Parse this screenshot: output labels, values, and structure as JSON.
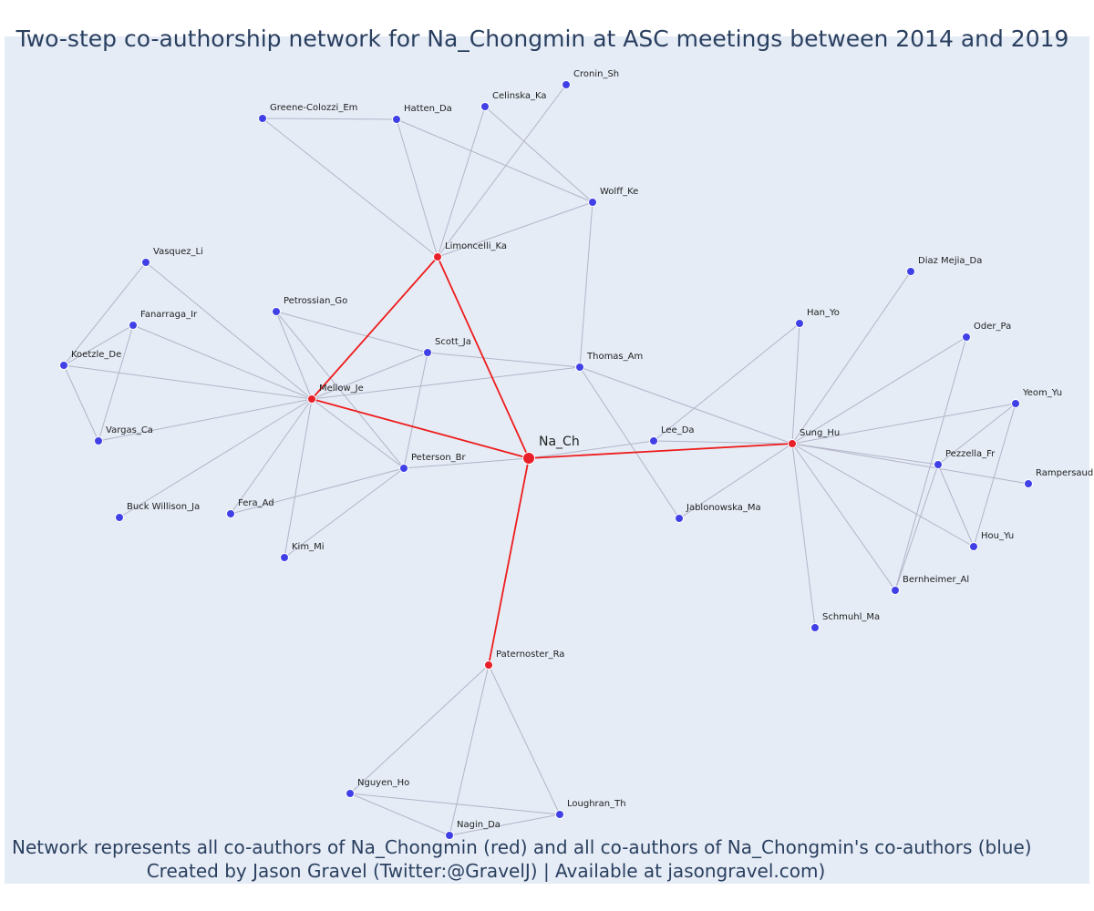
{
  "title": "Two-step co-authorship network for Na_Chongmin at ASC meetings between 2014 and 2019",
  "captions": {
    "line1": "Network represents all co-authors of Na_Chongmin (red) and all co-authors of Na_Chongmin's co-authors (blue)",
    "line2": "Created by Jason Gravel (Twitter:@GravelJ) | Available at jasongravel.com)"
  },
  "colors": {
    "background": "#e5ecf6",
    "coauthor": "#e8202a",
    "second_step": "#4040e6",
    "edge": "#b4b4c8",
    "red_edge": "#ee1c1c"
  },
  "chart_data": {
    "type": "network",
    "focal": "Na_Ch",
    "nodes": [
      {
        "id": "Na_Ch",
        "group": "focal"
      },
      {
        "id": "Mellow_Je",
        "group": "coauthor"
      },
      {
        "id": "Limoncelli_Ka",
        "group": "coauthor"
      },
      {
        "id": "Sung_Hu",
        "group": "coauthor"
      },
      {
        "id": "Paternoster_Ra",
        "group": "coauthor"
      },
      {
        "id": "Cronin_Sh",
        "group": "second"
      },
      {
        "id": "Celinska_Ka",
        "group": "second"
      },
      {
        "id": "Greene-Colozzi_Em",
        "group": "second"
      },
      {
        "id": "Hatten_Da",
        "group": "second"
      },
      {
        "id": "Wolff_Ke",
        "group": "second"
      },
      {
        "id": "Vasquez_Li",
        "group": "second"
      },
      {
        "id": "Fanarraga_Ir",
        "group": "second"
      },
      {
        "id": "Petrossian_Go",
        "group": "second"
      },
      {
        "id": "Koetzle_De",
        "group": "second"
      },
      {
        "id": "Scott_Ja",
        "group": "second"
      },
      {
        "id": "Thomas_Am",
        "group": "second"
      },
      {
        "id": "Vargas_Ca",
        "group": "second"
      },
      {
        "id": "Peterson_Br",
        "group": "second"
      },
      {
        "id": "Buck Willison_Ja",
        "group": "second"
      },
      {
        "id": "Fera_Ad",
        "group": "second"
      },
      {
        "id": "Kim_Mi",
        "group": "second"
      },
      {
        "id": "Lee_Da",
        "group": "second"
      },
      {
        "id": "Jablonowska_Ma",
        "group": "second"
      },
      {
        "id": "Han_Yo",
        "group": "second"
      },
      {
        "id": "Diaz Mejia_Da",
        "group": "second"
      },
      {
        "id": "Oder_Pa",
        "group": "second"
      },
      {
        "id": "Yeom_Yu",
        "group": "second"
      },
      {
        "id": "Pezzella_Fr",
        "group": "second"
      },
      {
        "id": "Rampersaud",
        "group": "second"
      },
      {
        "id": "Hou_Yu",
        "group": "second"
      },
      {
        "id": "Bernheimer_Al",
        "group": "second"
      },
      {
        "id": "Schmuhl_Ma",
        "group": "second"
      },
      {
        "id": "Nguyen_Ho",
        "group": "second"
      },
      {
        "id": "Loughran_Th",
        "group": "second"
      },
      {
        "id": "Nagin_Da",
        "group": "second"
      }
    ],
    "edges": [
      [
        "Na_Ch",
        "Mellow_Je",
        "red"
      ],
      [
        "Na_Ch",
        "Limoncelli_Ka",
        "red"
      ],
      [
        "Na_Ch",
        "Sung_Hu",
        "red"
      ],
      [
        "Na_Ch",
        "Paternoster_Ra",
        "red"
      ],
      [
        "Mellow_Je",
        "Limoncelli_Ka",
        "red"
      ],
      [
        "Na_Ch",
        "Lee_Da",
        "grey"
      ],
      [
        "Na_Ch",
        "Peterson_Br",
        "grey"
      ],
      [
        "Limoncelli_Ka",
        "Greene-Colozzi_Em",
        "grey"
      ],
      [
        "Limoncelli_Ka",
        "Hatten_Da",
        "grey"
      ],
      [
        "Limoncelli_Ka",
        "Celinska_Ka",
        "grey"
      ],
      [
        "Limoncelli_Ka",
        "Cronin_Sh",
        "grey"
      ],
      [
        "Limoncelli_Ka",
        "Wolff_Ke",
        "grey"
      ],
      [
        "Greene-Colozzi_Em",
        "Hatten_Da",
        "grey"
      ],
      [
        "Hatten_Da",
        "Wolff_Ke",
        "grey"
      ],
      [
        "Celinska_Ka",
        "Wolff_Ke",
        "grey"
      ],
      [
        "Wolff_Ke",
        "Thomas_Am",
        "grey"
      ],
      [
        "Mellow_Je",
        "Vasquez_Li",
        "grey"
      ],
      [
        "Mellow_Je",
        "Fanarraga_Ir",
        "grey"
      ],
      [
        "Mellow_Je",
        "Koetzle_De",
        "grey"
      ],
      [
        "Mellow_Je",
        "Vargas_Ca",
        "grey"
      ],
      [
        "Mellow_Je",
        "Petrossian_Go",
        "grey"
      ],
      [
        "Mellow_Je",
        "Scott_Ja",
        "grey"
      ],
      [
        "Mellow_Je",
        "Thomas_Am",
        "grey"
      ],
      [
        "Mellow_Je",
        "Peterson_Br",
        "grey"
      ],
      [
        "Mellow_Je",
        "Buck Willison_Ja",
        "grey"
      ],
      [
        "Mellow_Je",
        "Fera_Ad",
        "grey"
      ],
      [
        "Mellow_Je",
        "Kim_Mi",
        "grey"
      ],
      [
        "Vasquez_Li",
        "Koetzle_De",
        "grey"
      ],
      [
        "Fanarraga_Ir",
        "Koetzle_De",
        "grey"
      ],
      [
        "Fanarraga_Ir",
        "Vargas_Ca",
        "grey"
      ],
      [
        "Koetzle_De",
        "Vargas_Ca",
        "grey"
      ],
      [
        "Petrossian_Go",
        "Scott_Ja",
        "grey"
      ],
      [
        "Petrossian_Go",
        "Peterson_Br",
        "grey"
      ],
      [
        "Scott_Ja",
        "Thomas_Am",
        "grey"
      ],
      [
        "Scott_Ja",
        "Peterson_Br",
        "grey"
      ],
      [
        "Peterson_Br",
        "Fera_Ad",
        "grey"
      ],
      [
        "Peterson_Br",
        "Kim_Mi",
        "grey"
      ],
      [
        "Thomas_Am",
        "Sung_Hu",
        "grey"
      ],
      [
        "Thomas_Am",
        "Jablonowska_Ma",
        "grey"
      ],
      [
        "Lee_Da",
        "Han_Yo",
        "grey"
      ],
      [
        "Lee_Da",
        "Sung_Hu",
        "grey"
      ],
      [
        "Sung_Hu",
        "Han_Yo",
        "grey"
      ],
      [
        "Sung_Hu",
        "Diaz Mejia_Da",
        "grey"
      ],
      [
        "Sung_Hu",
        "Oder_Pa",
        "grey"
      ],
      [
        "Sung_Hu",
        "Yeom_Yu",
        "grey"
      ],
      [
        "Sung_Hu",
        "Pezzella_Fr",
        "grey"
      ],
      [
        "Sung_Hu",
        "Rampersaud",
        "grey"
      ],
      [
        "Sung_Hu",
        "Hou_Yu",
        "grey"
      ],
      [
        "Sung_Hu",
        "Bernheimer_Al",
        "grey"
      ],
      [
        "Sung_Hu",
        "Schmuhl_Ma",
        "grey"
      ],
      [
        "Sung_Hu",
        "Jablonowska_Ma",
        "grey"
      ],
      [
        "Oder_Pa",
        "Bernheimer_Al",
        "grey"
      ],
      [
        "Yeom_Yu",
        "Pezzella_Fr",
        "grey"
      ],
      [
        "Yeom_Yu",
        "Hou_Yu",
        "grey"
      ],
      [
        "Pezzella_Fr",
        "Hou_Yu",
        "grey"
      ],
      [
        "Pezzella_Fr",
        "Bernheimer_Al",
        "grey"
      ],
      [
        "Paternoster_Ra",
        "Nguyen_Ho",
        "grey"
      ],
      [
        "Paternoster_Ra",
        "Nagin_Da",
        "grey"
      ],
      [
        "Paternoster_Ra",
        "Loughran_Th",
        "grey"
      ],
      [
        "Nguyen_Ho",
        "Nagin_Da",
        "grey"
      ],
      [
        "Nguyen_Ho",
        "Loughran_Th",
        "grey"
      ],
      [
        "Nagin_Da",
        "Loughran_Th",
        "grey"
      ]
    ]
  }
}
